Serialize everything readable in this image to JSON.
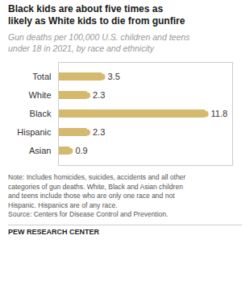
{
  "chart_data": {
    "type": "bar",
    "orientation": "horizontal",
    "title": "Black kids are about five times as\nlikely as White kids to die from gunfire",
    "subtitle": "Gun deaths per 100,000 U.S. children and teens\nunder 18 in 2021, by race and ethnicity",
    "categories": [
      "Total",
      "White",
      "Black",
      "Hispanic",
      "Asian"
    ],
    "values": [
      3.5,
      2.3,
      11.8,
      2.3,
      0.9
    ],
    "color": "#D4B96E",
    "marker": "circle",
    "xlim": [
      0,
      14.0
    ],
    "tick_labels": "y",
    "data_labels": true,
    "annotations": [
      "Note: Includes homicides, suicides, accidents and all other\ncategories of gun deaths. White, Black and Asian children\nand teens include those who are only one race and not\nHispanic. Hispanics are of any race.\nSource: Centers for Disease Control and Prevention.",
      "PEW RESEARCH CENTER"
    ]
  }
}
